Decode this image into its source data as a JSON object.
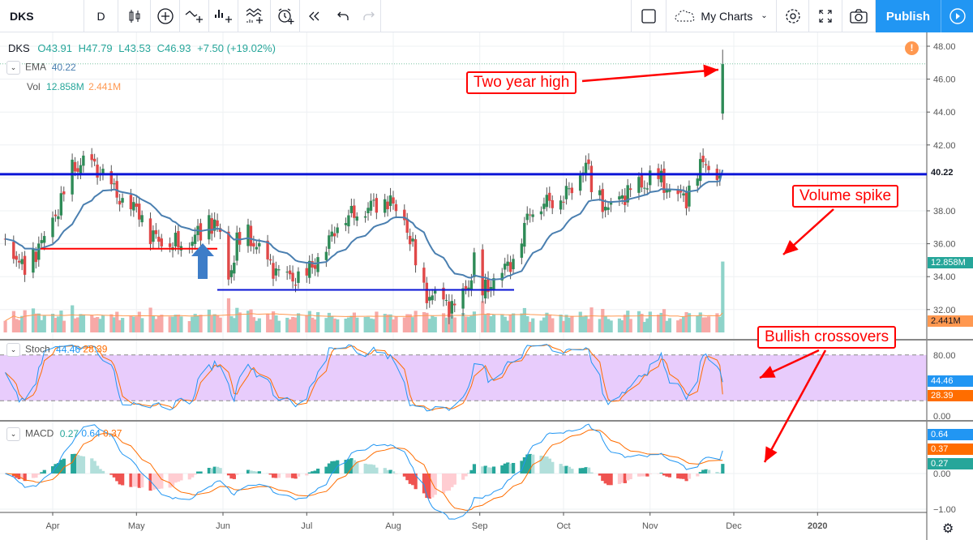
{
  "toolbar": {
    "symbol": "DKS",
    "interval": "D",
    "my_charts": "My Charts",
    "publish": "Publish",
    "icons": [
      "candles-icon",
      "compare-plus-icon",
      "indicators-icon",
      "financials-icon",
      "templates-icon",
      "alert-icon",
      "replay-icon",
      "undo-icon",
      "redo-icon",
      "layout-square-icon",
      "cloud-icon",
      "settings-gear-icon",
      "fullscreen-icon",
      "camera-icon",
      "play-icon"
    ]
  },
  "legend": {
    "symbol": "DKS",
    "open": "O43.91",
    "high": "H47.79",
    "low": "L43.53",
    "close": "C46.93",
    "change": "+7.50 (+19.02%)",
    "ema_label": "EMA",
    "ema_value": "40.22",
    "vol_label": "Vol",
    "vol_value": "12.858M",
    "vol_ma": "2.441M",
    "stoch_label": "Stoch",
    "stoch_k": "44.46",
    "stoch_d": "28.39",
    "macd_label": "MACD",
    "macd_hist": "0.27",
    "macd_line": "0.64",
    "macd_signal": "0.37"
  },
  "annotations": {
    "two_year_high": "Two year high",
    "volume_spike": "Volume spike",
    "bullish_crossovers": "Bullish crossovers"
  },
  "colors": {
    "up": "#26a69a",
    "down": "#ef5350",
    "ema": "#4a7fb0",
    "accent": "#2196f3",
    "orange": "#ff6d00",
    "annotation": "#ff0000",
    "support": "#0a14d6"
  },
  "chart_data": {
    "type": "candlestick",
    "title": "DKS Daily",
    "price_ticks": [
      "48.00",
      "46.00",
      "44.00",
      "42.00",
      "38.00",
      "36.00",
      "34.00",
      "32.00"
    ],
    "price_range": [
      31.2,
      48.6
    ],
    "stoch_ticks": [
      "80.00",
      "0.00"
    ],
    "macd_ticks": [
      "0.00",
      "-1.00"
    ],
    "date_ticks": [
      {
        "label": "Apr",
        "date": "04-01"
      },
      {
        "label": "May",
        "date": "05-01"
      },
      {
        "label": "Jun",
        "date": "06-01"
      },
      {
        "label": "Jul",
        "date": "07-01"
      },
      {
        "label": "Aug",
        "date": "08-01"
      },
      {
        "label": "Sep",
        "date": "09-01"
      },
      {
        "label": "Oct",
        "date": "10-01"
      },
      {
        "label": "Nov",
        "date": "11-01"
      },
      {
        "label": "Dec",
        "date": "12-01"
      },
      {
        "label": "2020",
        "date": "12-31"
      }
    ],
    "close_keypoints": [
      [
        "03-15",
        36.5
      ],
      [
        "03-21",
        34.5
      ],
      [
        "03-28",
        36
      ],
      [
        "04-04",
        38.5
      ],
      [
        "04-08",
        40.5
      ],
      [
        "04-14",
        41
      ],
      [
        "04-20",
        40
      ],
      [
        "04-26",
        38.5
      ],
      [
        "05-02",
        38
      ],
      [
        "05-06",
        36.5
      ],
      [
        "05-14",
        36
      ],
      [
        "05-21",
        36.2
      ],
      [
        "05-27",
        37.5
      ],
      [
        "06-01",
        36.5
      ],
      [
        "06-03",
        33.8
      ],
      [
        "06-06",
        36
      ],
      [
        "06-10",
        36.5
      ],
      [
        "06-16",
        35
      ],
      [
        "06-22",
        34
      ],
      [
        "06-29",
        33.8
      ],
      [
        "07-07",
        35.5
      ],
      [
        "07-13",
        37.5
      ],
      [
        "07-20",
        38
      ],
      [
        "07-26",
        38.5
      ],
      [
        "07-30",
        38.7
      ],
      [
        "08-05",
        37.5
      ],
      [
        "08-09",
        35
      ],
      [
        "08-12",
        33
      ],
      [
        "08-18",
        32.5
      ],
      [
        "08-24",
        32
      ],
      [
        "08-28",
        33.5
      ],
      [
        "08-31",
        35.5
      ],
      [
        "09-02",
        33
      ],
      [
        "09-07",
        34
      ],
      [
        "09-13",
        35
      ],
      [
        "09-19",
        38
      ],
      [
        "09-24",
        38.5
      ],
      [
        "09-30",
        38.8
      ],
      [
        "10-05",
        39.5
      ],
      [
        "10-09",
        41
      ],
      [
        "10-11",
        39.5
      ],
      [
        "10-17",
        38
      ],
      [
        "10-23",
        39
      ],
      [
        "10-29",
        39.5
      ],
      [
        "11-04",
        40
      ],
      [
        "11-09",
        39
      ],
      [
        "11-14",
        38.8
      ],
      [
        "11-18",
        40.5
      ],
      [
        "11-21",
        41
      ],
      [
        "11-25",
        40.2
      ]
    ],
    "last_bar": {
      "open": 43.91,
      "high": 47.79,
      "low": 43.53,
      "close": 46.93,
      "volume_m": 12.858
    },
    "ema_last": 40.22,
    "vol_ma_m": 2.441,
    "resistance_level": 40.22,
    "support_levels": [
      35.7,
      33.2
    ],
    "stoch_bands": [
      20,
      80
    ],
    "stoch_last": {
      "k": 44.46,
      "d": 28.39
    },
    "macd_last": {
      "hist": 0.27,
      "macd": 0.64,
      "signal": 0.37
    }
  }
}
